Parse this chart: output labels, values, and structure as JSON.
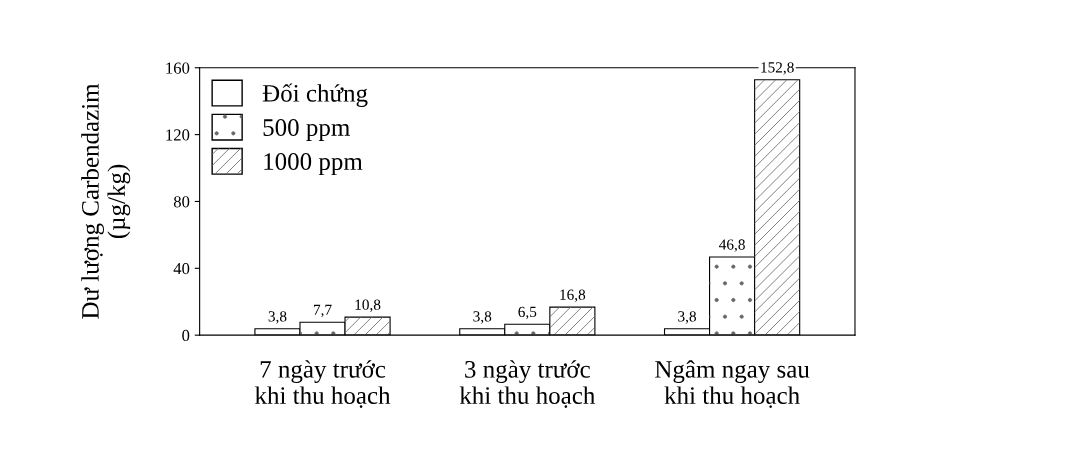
{
  "chart_data": {
    "type": "bar",
    "categories": [
      "7 ngày trước\nkhi thu hoạch",
      "3 ngày trước\nkhi thu hoạch",
      "Ngâm ngay sau\nkhi thu hoạch"
    ],
    "ylabel": "Dư lượng Carbendazim\n(µg/kg)",
    "series": [
      {
        "name": "Đối chứng",
        "color": "#ffffff",
        "values": [
          3.8,
          3.8,
          3.8
        ],
        "value_labels": [
          "3,8",
          "3,8",
          "3,8"
        ]
      },
      {
        "name": "500 ppm",
        "color": "#ffffff",
        "values": [
          7.7,
          6.5,
          46.8
        ],
        "value_labels": [
          "7,7",
          "6,5",
          "46,8"
        ]
      },
      {
        "name": "1000 ppm",
        "color": "#ffffff",
        "values": [
          10.8,
          16.8,
          152.8
        ],
        "value_labels": [
          "10,8",
          "16,8",
          "152,8"
        ]
      }
    ],
    "ylim": [
      0,
      160
    ],
    "yticks": [
      0,
      40,
      80,
      120,
      160
    ],
    "grid": false,
    "legend": "top left"
  }
}
